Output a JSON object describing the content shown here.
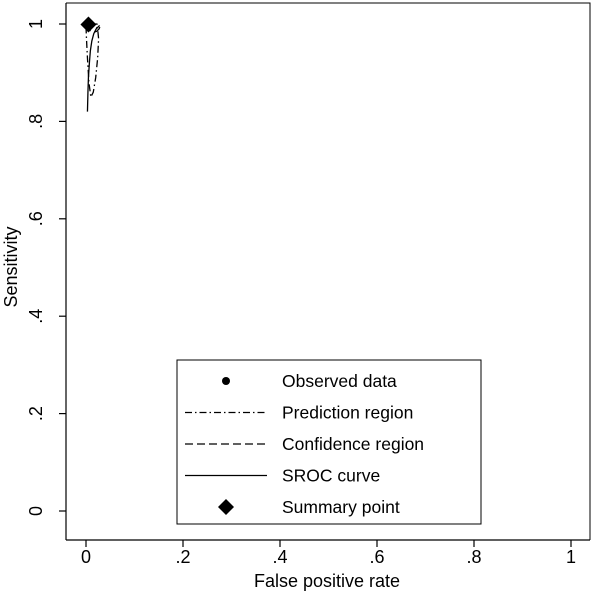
{
  "chart_data": {
    "type": "sroc",
    "xlabel": "False positive rate",
    "ylabel": "Sensitivity",
    "xlim": [
      0,
      1
    ],
    "ylim": [
      0,
      1
    ],
    "x_ticks": [
      0,
      0.2,
      0.4,
      0.6,
      0.8,
      1
    ],
    "x_tick_labels": [
      "0",
      ".2",
      ".4",
      ".6",
      ".8",
      "1"
    ],
    "y_ticks": [
      0,
      0.2,
      0.4,
      0.6,
      0.8,
      1
    ],
    "y_tick_labels": [
      "0",
      ".2",
      ".4",
      ".6",
      ".8",
      "1"
    ],
    "grid": false,
    "legend_position": "bottom-center",
    "series": [
      {
        "name": "Observed data",
        "kind": "scatter",
        "marker": "circle",
        "x": [
          0.003,
          0.004,
          0.004,
          0.005,
          0.006,
          0.004,
          0.005
        ],
        "y": [
          0.997,
          0.999,
          1.0,
          0.999,
          1.0,
          0.998,
          1.0
        ]
      },
      {
        "name": "Prediction region",
        "kind": "line",
        "dash": "dashdot",
        "x": [
          0.0,
          0.001,
          0.003,
          0.006,
          0.01,
          0.015,
          0.02,
          0.024,
          0.026,
          0.024,
          0.019,
          0.013,
          0.008,
          0.004,
          0.001,
          0.0
        ],
        "y": [
          0.995,
          0.97,
          0.93,
          0.88,
          0.85,
          0.86,
          0.89,
          0.93,
          0.97,
          0.99,
          0.997,
          1.0,
          1.0,
          1.0,
          1.0,
          0.995
        ]
      },
      {
        "name": "Confidence region",
        "kind": "line",
        "dash": "dashed",
        "x": [
          0.0,
          0.002,
          0.005,
          0.01,
          0.016,
          0.022,
          0.027,
          0.029,
          0.027,
          0.022,
          0.016,
          0.01,
          0.005,
          0.001,
          0.0
        ],
        "y": [
          0.999,
          0.995,
          0.99,
          0.985,
          0.983,
          0.985,
          0.99,
          0.995,
          0.998,
          1.0,
          1.0,
          1.0,
          1.0,
          1.0,
          0.999
        ]
      },
      {
        "name": "SROC curve",
        "kind": "line",
        "dash": "solid",
        "x": [
          0.003,
          0.004,
          0.005,
          0.007,
          0.009,
          0.012,
          0.016,
          0.021,
          0.028
        ],
        "y": [
          0.82,
          0.86,
          0.89,
          0.92,
          0.945,
          0.965,
          0.98,
          0.99,
          0.997
        ]
      },
      {
        "name": "Summary point",
        "kind": "point",
        "marker": "diamond",
        "x": [
          0.005
        ],
        "y": [
          0.999
        ]
      }
    ]
  }
}
